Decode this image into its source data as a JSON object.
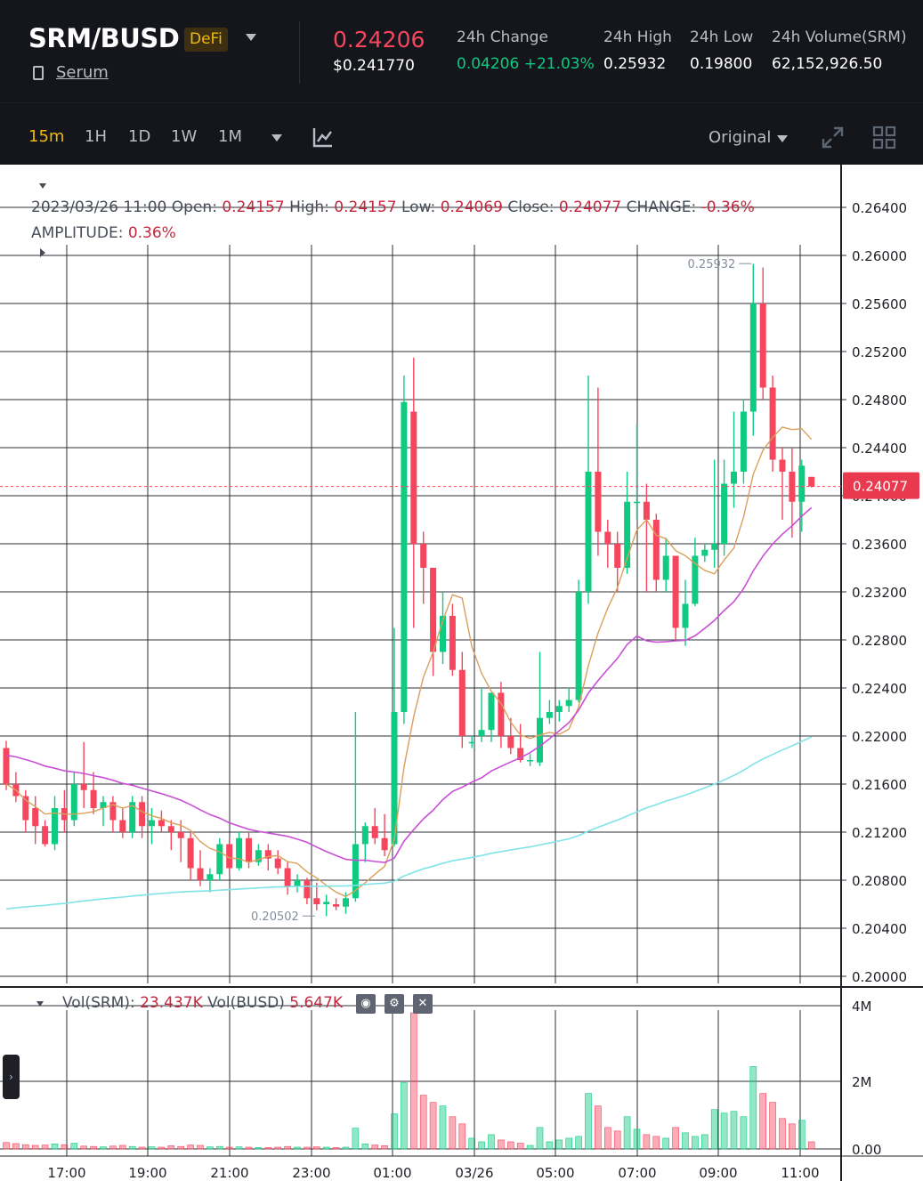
{
  "header": {
    "pair": "SRM/BUSD",
    "badge": "DeFi",
    "project_link": "Serum",
    "last_price": "0.24206",
    "usd_price": "$0.241770",
    "stats": [
      {
        "label": "24h Change",
        "value": "0.04206 +21.03%"
      },
      {
        "label": "24h High",
        "value": "0.25932"
      },
      {
        "label": "24h Low",
        "value": "0.19800"
      },
      {
        "label": "24h Volume(SRM)",
        "value": "62,152,926.50"
      }
    ]
  },
  "toolbar": {
    "timeframes": [
      "15m",
      "1H",
      "1D",
      "1W",
      "1M"
    ],
    "active_timeframe": "15m",
    "view_mode": "Original"
  },
  "ohlc": {
    "date": "2023/03/26 11:00",
    "open_label": "Open:",
    "open": "0.24157",
    "high_label": "High:",
    "high": "0.24157",
    "low_label": "Low:",
    "low": "0.24069",
    "close_label": "Close:",
    "close": "0.24077",
    "change_label": "CHANGE:",
    "change": "-0.36%",
    "amplitude_label": "AMPLITUDE:",
    "amplitude": "0.36%"
  },
  "volume_info": {
    "srm_label": "Vol(SRM):",
    "srm": "23.437K",
    "busd_label": "Vol(BUSD)",
    "busd": "5.647K"
  },
  "colors": {
    "up": "#0ecb81",
    "down": "#f6465d",
    "ma7": "#d9a05b",
    "ma25": "#c94fd6",
    "ma99": "#7fe3e8",
    "accent": "#f0b90b"
  },
  "chart_data": {
    "type": "candlestick",
    "price_axis": {
      "min": 0.2,
      "max": 0.264,
      "ticks": [
        "0.26400",
        "0.26000",
        "0.25600",
        "0.25200",
        "0.24800",
        "0.24400",
        "0.24000",
        "0.23600",
        "0.23200",
        "0.22800",
        "0.22400",
        "0.22000",
        "0.21600",
        "0.21200",
        "0.20800",
        "0.20400",
        "0.20000"
      ]
    },
    "volume_axis": {
      "ticks": [
        "4M",
        "2M",
        "0.00"
      ],
      "max": 4000000
    },
    "time_ticks": [
      "17:00",
      "19:00",
      "21:00",
      "23:00",
      "01:00",
      "03/26",
      "05:00",
      "07:00",
      "09:00",
      "11:00"
    ],
    "current_price_tag": "0.24077",
    "high_marker": "0.25932",
    "low_marker": "0.20502",
    "candles": [
      [
        0.219,
        0.2196,
        0.2155,
        0.216,
        0.18
      ],
      [
        0.216,
        0.217,
        0.2145,
        0.215,
        0.15
      ],
      [
        0.215,
        0.2155,
        0.212,
        0.213,
        0.12
      ],
      [
        0.214,
        0.215,
        0.211,
        0.2125,
        0.1
      ],
      [
        0.2125,
        0.213,
        0.2108,
        0.211,
        0.11
      ],
      [
        0.211,
        0.215,
        0.2105,
        0.214,
        0.14
      ],
      [
        0.214,
        0.2155,
        0.212,
        0.213,
        0.12
      ],
      [
        0.213,
        0.217,
        0.2125,
        0.216,
        0.16
      ],
      [
        0.216,
        0.2195,
        0.214,
        0.2155,
        0.08
      ],
      [
        0.2155,
        0.217,
        0.2135,
        0.214,
        0.07
      ],
      [
        0.214,
        0.215,
        0.2125,
        0.2145,
        0.06
      ],
      [
        0.2145,
        0.215,
        0.212,
        0.213,
        0.08
      ],
      [
        0.213,
        0.214,
        0.2115,
        0.212,
        0.1
      ],
      [
        0.212,
        0.215,
        0.2115,
        0.2145,
        0.07
      ],
      [
        0.2145,
        0.215,
        0.2115,
        0.2125,
        0.05
      ],
      [
        0.2125,
        0.214,
        0.211,
        0.213,
        0.06
      ],
      [
        0.213,
        0.2138,
        0.212,
        0.2125,
        0.05
      ],
      [
        0.2125,
        0.213,
        0.2105,
        0.212,
        0.09
      ],
      [
        0.212,
        0.213,
        0.2095,
        0.2115,
        0.07
      ],
      [
        0.2115,
        0.212,
        0.208,
        0.209,
        0.11
      ],
      [
        0.209,
        0.2105,
        0.2075,
        0.208,
        0.1
      ],
      [
        0.208,
        0.209,
        0.207,
        0.2085,
        0.06
      ],
      [
        0.2085,
        0.2115,
        0.208,
        0.211,
        0.07
      ],
      [
        0.211,
        0.2115,
        0.2085,
        0.209,
        0.05
      ],
      [
        0.209,
        0.212,
        0.2088,
        0.2115,
        0.06
      ],
      [
        0.2115,
        0.212,
        0.209,
        0.2095,
        0.05
      ],
      [
        0.2095,
        0.211,
        0.2092,
        0.2105,
        0.04
      ],
      [
        0.2105,
        0.211,
        0.2088,
        0.2098,
        0.04
      ],
      [
        0.2098,
        0.2105,
        0.2085,
        0.209,
        0.05
      ],
      [
        0.209,
        0.2095,
        0.2068,
        0.2075,
        0.07
      ],
      [
        0.2075,
        0.2085,
        0.207,
        0.208,
        0.05
      ],
      [
        0.208,
        0.2082,
        0.206,
        0.2065,
        0.05
      ],
      [
        0.2065,
        0.2078,
        0.2055,
        0.206,
        0.06
      ],
      [
        0.206,
        0.2068,
        0.205,
        0.2062,
        0.05
      ],
      [
        0.206,
        0.2065,
        0.2055,
        0.2058,
        0.04
      ],
      [
        0.2058,
        0.207,
        0.2052,
        0.2065,
        0.05
      ],
      [
        0.2065,
        0.222,
        0.2062,
        0.211,
        0.58
      ],
      [
        0.211,
        0.2128,
        0.2095,
        0.2125,
        0.14
      ],
      [
        0.2125,
        0.214,
        0.211,
        0.2115,
        0.11
      ],
      [
        0.2115,
        0.2135,
        0.21,
        0.2105,
        0.09
      ],
      [
        0.211,
        0.229,
        0.2108,
        0.222,
        0.98
      ],
      [
        0.222,
        0.25,
        0.221,
        0.2478,
        1.85
      ],
      [
        0.247,
        0.2515,
        0.229,
        0.236,
        3.8
      ],
      [
        0.236,
        0.237,
        0.231,
        0.234,
        1.5
      ],
      [
        0.234,
        0.234,
        0.225,
        0.227,
        1.3
      ],
      [
        0.227,
        0.232,
        0.226,
        0.23,
        1.2
      ],
      [
        0.23,
        0.231,
        0.225,
        0.2255,
        0.9
      ],
      [
        0.2255,
        0.227,
        0.219,
        0.22,
        0.7
      ],
      [
        0.2195,
        0.22,
        0.219,
        0.2195,
        0.3
      ],
      [
        0.22,
        0.224,
        0.2195,
        0.2205,
        0.2
      ],
      [
        0.2205,
        0.2235,
        0.2195,
        0.2236,
        0.4
      ],
      [
        0.2236,
        0.2245,
        0.219,
        0.22,
        0.25
      ],
      [
        0.22,
        0.2215,
        0.2185,
        0.219,
        0.2
      ],
      [
        0.219,
        0.221,
        0.2178,
        0.218,
        0.16
      ],
      [
        0.218,
        0.2185,
        0.2175,
        0.218,
        0.1
      ],
      [
        0.2178,
        0.227,
        0.2175,
        0.2215,
        0.6
      ],
      [
        0.2215,
        0.223,
        0.221,
        0.222,
        0.2
      ],
      [
        0.222,
        0.223,
        0.2212,
        0.2225,
        0.25
      ],
      [
        0.2225,
        0.224,
        0.222,
        0.223,
        0.3
      ],
      [
        0.223,
        0.233,
        0.2228,
        0.232,
        0.35
      ],
      [
        0.232,
        0.25,
        0.231,
        0.242,
        1.55
      ],
      [
        0.242,
        0.249,
        0.235,
        0.237,
        1.2
      ],
      [
        0.237,
        0.238,
        0.234,
        0.236,
        0.6
      ],
      [
        0.236,
        0.237,
        0.232,
        0.234,
        0.5
      ],
      [
        0.234,
        0.242,
        0.2335,
        0.2395,
        0.9
      ],
      [
        0.2395,
        0.246,
        0.238,
        0.2395,
        0.55
      ],
      [
        0.2395,
        0.241,
        0.232,
        0.238,
        0.4
      ],
      [
        0.238,
        0.2385,
        0.232,
        0.233,
        0.35
      ],
      [
        0.233,
        0.2365,
        0.232,
        0.235,
        0.3
      ],
      [
        0.235,
        0.235,
        0.228,
        0.229,
        0.6
      ],
      [
        0.229,
        0.233,
        0.2275,
        0.231,
        0.45
      ],
      [
        0.231,
        0.2365,
        0.2308,
        0.235,
        0.35
      ],
      [
        0.235,
        0.236,
        0.2345,
        0.2355,
        0.4
      ],
      [
        0.2355,
        0.243,
        0.234,
        0.236,
        1.1
      ],
      [
        0.236,
        0.243,
        0.235,
        0.241,
        1.0
      ],
      [
        0.241,
        0.247,
        0.239,
        0.242,
        1.05
      ],
      [
        0.242,
        0.248,
        0.241,
        0.247,
        0.9
      ],
      [
        0.247,
        0.2593,
        0.245,
        0.256,
        2.3
      ],
      [
        0.256,
        0.259,
        0.248,
        0.249,
        1.55
      ],
      [
        0.249,
        0.25,
        0.242,
        0.243,
        1.3
      ],
      [
        0.243,
        0.244,
        0.238,
        0.242,
        0.85
      ],
      [
        0.242,
        0.244,
        0.2365,
        0.2395,
        0.7
      ],
      [
        0.2395,
        0.243,
        0.237,
        0.2425,
        0.8
      ],
      [
        0.24157,
        0.24157,
        0.24069,
        0.24077,
        0.2
      ]
    ]
  }
}
